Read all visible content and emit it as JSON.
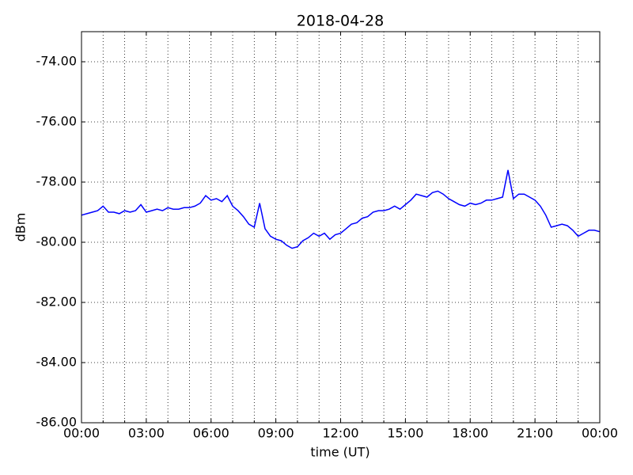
{
  "chart_data": {
    "type": "line",
    "title": "2018-04-28",
    "xlabel": "time (UT)",
    "ylabel": "dBm",
    "x": [
      0,
      0.25,
      0.5,
      0.75,
      1,
      1.25,
      1.5,
      1.75,
      2,
      2.25,
      2.5,
      2.75,
      3,
      3.25,
      3.5,
      3.75,
      4,
      4.25,
      4.5,
      4.75,
      5,
      5.25,
      5.5,
      5.75,
      6,
      6.25,
      6.5,
      6.75,
      7,
      7.25,
      7.5,
      7.75,
      8,
      8.25,
      8.5,
      8.75,
      9,
      9.25,
      9.5,
      9.75,
      10,
      10.25,
      10.5,
      10.75,
      11,
      11.25,
      11.5,
      11.75,
      12,
      12.25,
      12.5,
      12.75,
      13,
      13.25,
      13.5,
      13.75,
      14,
      14.25,
      14.5,
      14.75,
      15,
      15.25,
      15.5,
      15.75,
      16,
      16.25,
      16.5,
      16.75,
      17,
      17.25,
      17.5,
      17.75,
      18,
      18.25,
      18.5,
      18.75,
      19,
      19.25,
      19.5,
      19.75,
      20,
      20.25,
      20.5,
      20.75,
      21,
      21.25,
      21.5,
      21.75,
      22,
      22.25,
      22.5,
      22.75,
      23,
      23.25,
      23.5,
      23.75,
      24
    ],
    "series": [
      {
        "name": "dBm",
        "color": "#0000ff",
        "values": [
          -79.1,
          -79.05,
          -79.0,
          -78.95,
          -78.8,
          -79.0,
          -79.0,
          -79.05,
          -78.95,
          -79.0,
          -78.95,
          -78.75,
          -79.0,
          -78.95,
          -78.9,
          -78.95,
          -78.85,
          -78.9,
          -78.9,
          -78.85,
          -78.85,
          -78.8,
          -78.7,
          -78.45,
          -78.6,
          -78.55,
          -78.65,
          -78.45,
          -78.8,
          -78.95,
          -79.15,
          -79.4,
          -79.5,
          -78.7,
          -79.55,
          -79.8,
          -79.9,
          -79.95,
          -80.1,
          -80.2,
          -80.15,
          -79.95,
          -79.85,
          -79.7,
          -79.8,
          -79.7,
          -79.9,
          -79.75,
          -79.7,
          -79.55,
          -79.4,
          -79.35,
          -79.2,
          -79.15,
          -79.0,
          -78.95,
          -78.95,
          -78.9,
          -78.8,
          -78.9,
          -78.75,
          -78.6,
          -78.4,
          -78.45,
          -78.5,
          -78.35,
          -78.3,
          -78.4,
          -78.55,
          -78.65,
          -78.75,
          -78.8,
          -78.7,
          -78.75,
          -78.7,
          -78.6,
          -78.6,
          -78.55,
          -78.5,
          -77.6,
          -78.55,
          -78.4,
          -78.4,
          -78.5,
          -78.6,
          -78.8,
          -79.1,
          -79.5,
          -79.45,
          -79.4,
          -79.45,
          -79.6,
          -79.8,
          -79.7,
          -79.6,
          -79.6,
          -79.65
        ]
      }
    ],
    "xlim": [
      0,
      24
    ],
    "xticks": [
      {
        "value": 0,
        "label": "00:00"
      },
      {
        "value": 3,
        "label": "03:00"
      },
      {
        "value": 6,
        "label": "06:00"
      },
      {
        "value": 9,
        "label": "09:00"
      },
      {
        "value": 12,
        "label": "12:00"
      },
      {
        "value": 15,
        "label": "15:00"
      },
      {
        "value": 18,
        "label": "18:00"
      },
      {
        "value": 21,
        "label": "21:00"
      },
      {
        "value": 24,
        "label": "00:00"
      }
    ],
    "xminorticks": [
      1,
      2,
      4,
      5,
      7,
      8,
      10,
      11,
      13,
      14,
      16,
      17,
      19,
      20,
      22,
      23
    ],
    "ylim": [
      -86,
      -73
    ],
    "yticks": [
      {
        "value": -86,
        "label": "-86.00"
      },
      {
        "value": -84,
        "label": "-84.00"
      },
      {
        "value": -82,
        "label": "-82.00"
      },
      {
        "value": -80,
        "label": "-80.00"
      },
      {
        "value": -78,
        "label": "-78.00"
      },
      {
        "value": -76,
        "label": "-76.00"
      },
      {
        "value": -74,
        "label": "-74.00"
      }
    ],
    "grid": true
  }
}
